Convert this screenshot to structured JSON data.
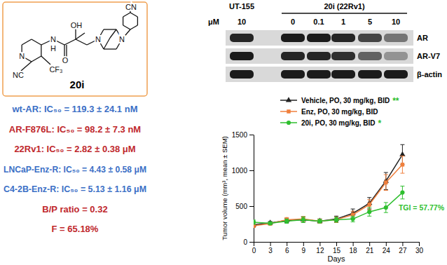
{
  "structure": {
    "compound": "20i",
    "atoms": [
      "N",
      "NC",
      "CF₃",
      "N",
      "H",
      "O",
      "OH",
      "N",
      "N",
      "CN"
    ]
  },
  "activity": [
    {
      "text": "wt-AR: IC₅₀ = 119.3 ± 24.1 nM",
      "color": "#3b6fc6"
    },
    {
      "text": "AR-F876L: IC₅₀ = 98.2 ± 7.3 nM",
      "color": "#c0282d"
    },
    {
      "text": "22Rv1: IC₅₀ = 2.82 ± 0.38 μM",
      "color": "#c0282d"
    },
    {
      "text": "LNCaP-Enz-R: IC₅₀ = 4.43 ± 0.58  μM",
      "color": "#3b6fc6"
    },
    {
      "text": "C4-2B-Enz-R: IC₅₀ = 5.13 ± 1.16 μM",
      "color": "#3b6fc6"
    },
    {
      "text": "B/P ratio = 0.32",
      "color": "#c0282d"
    },
    {
      "text": "F = 65.18%",
      "color": "#c0282d"
    }
  ],
  "blot": {
    "reference": "UT-155",
    "treatment": "20i (22Rv1)",
    "unit": "μM",
    "concentrations": [
      10,
      0,
      0.1,
      1,
      5,
      10
    ],
    "rows": [
      {
        "label": "AR",
        "intensity": [
          0.9,
          0.95,
          0.95,
          0.9,
          0.75,
          0.5
        ]
      },
      {
        "label": "AR-V7",
        "intensity": [
          0.95,
          0.9,
          0.9,
          0.85,
          0.6,
          0.35
        ]
      },
      {
        "label": "β-actin",
        "intensity": [
          0.95,
          0.95,
          0.95,
          0.95,
          0.95,
          0.95
        ]
      }
    ]
  },
  "chart_data": {
    "type": "line",
    "x_label": "Days",
    "y_label": "Tumor volume (mm³, mean ± SEM)",
    "x": [
      0,
      3,
      6,
      9,
      12,
      15,
      18,
      21,
      24,
      27
    ],
    "xlim": [
      0,
      30
    ],
    "xticks": [
      0,
      3,
      6,
      9,
      12,
      15,
      18,
      21,
      24,
      27,
      30
    ],
    "ylim": [
      0,
      1500
    ],
    "yticks": [
      0,
      500,
      1000,
      1500
    ],
    "legend": "upper left",
    "series": [
      {
        "name": "Vehicle, PO, 30 mg/kg, BID",
        "color": "#222222",
        "marker": "triangle",
        "significance": "**",
        "values": [
          240,
          265,
          300,
          310,
          290,
          320,
          400,
          540,
          850,
          1220
        ],
        "errors": [
          30,
          20,
          30,
          40,
          30,
          40,
          60,
          80,
          120,
          140
        ]
      },
      {
        "name": "Enz, PO, 30 mg/kg, BID",
        "color": "#f07f3c",
        "marker": "square",
        "values": [
          225,
          255,
          310,
          320,
          290,
          310,
          380,
          520,
          830,
          1080
        ],
        "errors": [
          25,
          20,
          30,
          35,
          30,
          40,
          50,
          70,
          110,
          120
        ]
      },
      {
        "name": "20i, PO, 30 mg/kg, BID",
        "color": "#2fbf2f",
        "marker": "circle",
        "significance": "*",
        "annotation": "TGI = 57.77%",
        "values": [
          275,
          260,
          290,
          310,
          290,
          310,
          320,
          420,
          480,
          690
        ],
        "errors": [
          30,
          20,
          30,
          40,
          25,
          35,
          40,
          60,
          70,
          90
        ]
      }
    ]
  }
}
